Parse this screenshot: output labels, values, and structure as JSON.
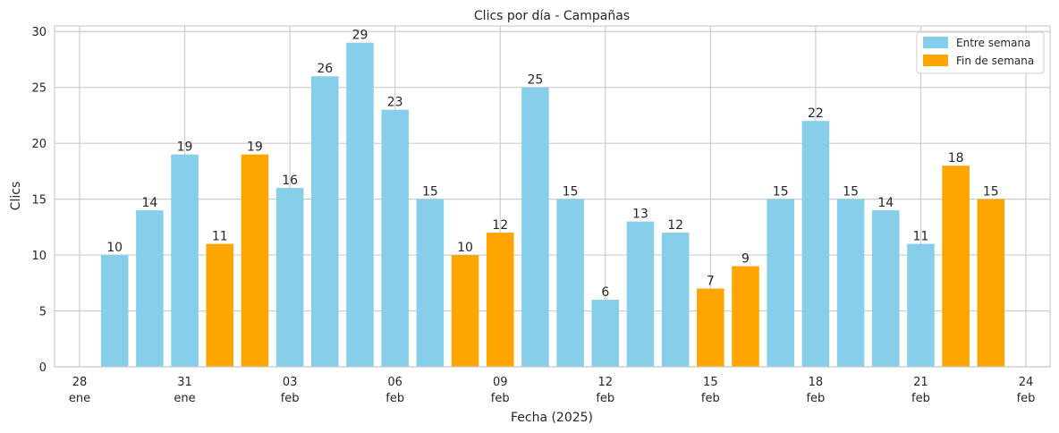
{
  "chart_data": {
    "type": "bar",
    "title": "Clics por día - Campañas",
    "xlabel": "Fecha (2025)",
    "ylabel": "Clics",
    "ylim": [
      0,
      30.5
    ],
    "xlim": [
      "2025-01-28",
      "2025-02-24"
    ],
    "grid": true,
    "legend_position": "top-right",
    "series": [
      {
        "name": "Entre semana",
        "color": "#87ceeb"
      },
      {
        "name": "Fin de semana",
        "color": "#ffa500"
      }
    ],
    "bars": [
      {
        "date": "2025-01-29",
        "value": 10,
        "series": "Entre semana"
      },
      {
        "date": "2025-01-30",
        "value": 14,
        "series": "Entre semana"
      },
      {
        "date": "2025-01-31",
        "value": 19,
        "series": "Entre semana"
      },
      {
        "date": "2025-02-01",
        "value": 11,
        "series": "Fin de semana"
      },
      {
        "date": "2025-02-02",
        "value": 19,
        "series": "Fin de semana"
      },
      {
        "date": "2025-02-03",
        "value": 16,
        "series": "Entre semana"
      },
      {
        "date": "2025-02-04",
        "value": 26,
        "series": "Entre semana"
      },
      {
        "date": "2025-02-05",
        "value": 29,
        "series": "Entre semana"
      },
      {
        "date": "2025-02-06",
        "value": 23,
        "series": "Entre semana"
      },
      {
        "date": "2025-02-07",
        "value": 15,
        "series": "Entre semana"
      },
      {
        "date": "2025-02-08",
        "value": 10,
        "series": "Fin de semana"
      },
      {
        "date": "2025-02-09",
        "value": 12,
        "series": "Fin de semana"
      },
      {
        "date": "2025-02-10",
        "value": 25,
        "series": "Entre semana"
      },
      {
        "date": "2025-02-11",
        "value": 15,
        "series": "Entre semana"
      },
      {
        "date": "2025-02-12",
        "value": 6,
        "series": "Entre semana"
      },
      {
        "date": "2025-02-13",
        "value": 13,
        "series": "Entre semana"
      },
      {
        "date": "2025-02-14",
        "value": 12,
        "series": "Entre semana"
      },
      {
        "date": "2025-02-15",
        "value": 7,
        "series": "Fin de semana"
      },
      {
        "date": "2025-02-16",
        "value": 9,
        "series": "Fin de semana"
      },
      {
        "date": "2025-02-17",
        "value": 15,
        "series": "Entre semana"
      },
      {
        "date": "2025-02-18",
        "value": 22,
        "series": "Entre semana"
      },
      {
        "date": "2025-02-19",
        "value": 15,
        "series": "Entre semana"
      },
      {
        "date": "2025-02-20",
        "value": 14,
        "series": "Entre semana"
      },
      {
        "date": "2025-02-21",
        "value": 11,
        "series": "Entre semana"
      },
      {
        "date": "2025-02-22",
        "value": 18,
        "series": "Fin de semana"
      },
      {
        "date": "2025-02-23",
        "value": 15,
        "series": "Fin de semana"
      }
    ],
    "x_ticks": [
      {
        "date": "2025-01-28",
        "day": "28",
        "month": "ene"
      },
      {
        "date": "2025-01-31",
        "day": "31",
        "month": "ene"
      },
      {
        "date": "2025-02-03",
        "day": "03",
        "month": "feb"
      },
      {
        "date": "2025-02-06",
        "day": "06",
        "month": "feb"
      },
      {
        "date": "2025-02-09",
        "day": "09",
        "month": "feb"
      },
      {
        "date": "2025-02-12",
        "day": "12",
        "month": "feb"
      },
      {
        "date": "2025-02-15",
        "day": "15",
        "month": "feb"
      },
      {
        "date": "2025-02-18",
        "day": "18",
        "month": "feb"
      },
      {
        "date": "2025-02-21",
        "day": "21",
        "month": "feb"
      },
      {
        "date": "2025-02-24",
        "day": "24",
        "month": "feb"
      }
    ],
    "y_ticks": [
      0,
      5,
      10,
      15,
      20,
      25,
      30
    ]
  }
}
